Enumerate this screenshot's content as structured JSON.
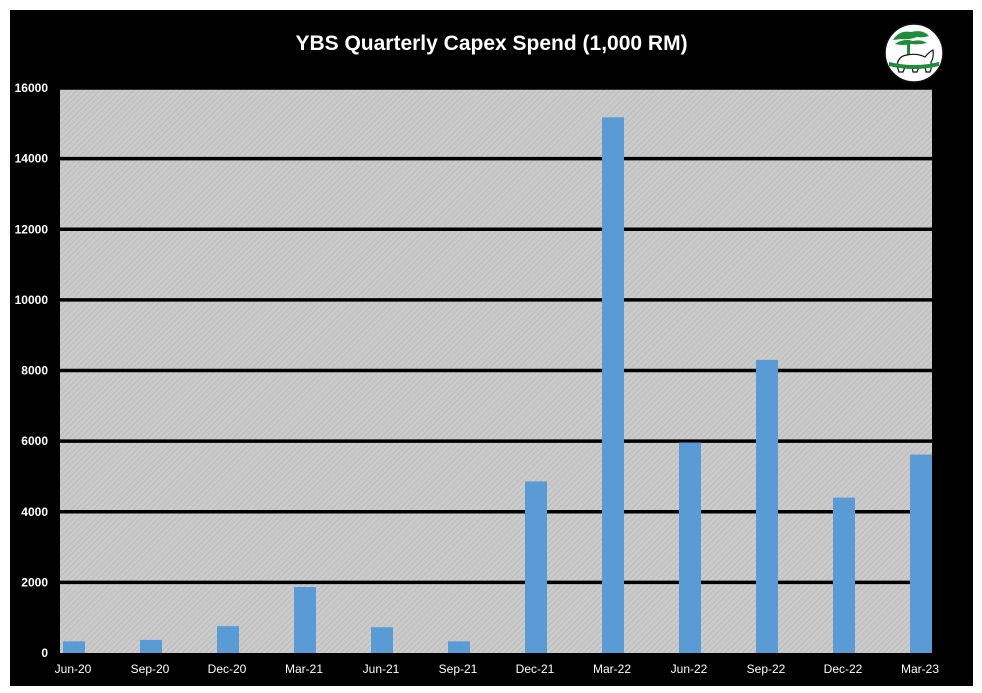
{
  "chart_data": {
    "type": "bar",
    "title": "YBS Quarterly Capex Spend (1,000 RM)",
    "xlabel": "",
    "ylabel": "",
    "categories": [
      "Jun-20",
      "Sep-20",
      "Dec-20",
      "Mar-21",
      "Jun-21",
      "Sep-21",
      "Dec-21",
      "Mar-22",
      "Jun-22",
      "Sep-22",
      "Dec-22",
      "Mar-23"
    ],
    "values": [
      330,
      370,
      760,
      1870,
      730,
      330,
      4860,
      15170,
      5960,
      8300,
      4400,
      5620
    ],
    "ylim": [
      0,
      16000
    ],
    "yticks": [
      "0",
      "2000",
      "4000",
      "6000",
      "8000",
      "10000",
      "12000",
      "14000",
      "16000"
    ],
    "grid": true,
    "legend": "none",
    "colors": {
      "bar": "#5B9BD5",
      "background": "#000000",
      "plot_area": "#c8c8c8",
      "gridline": "#000000",
      "text": "#ffffff",
      "logo_green": "#1e8c3a"
    }
  },
  "logo": {
    "icon": "tree-and-animal-logo"
  }
}
